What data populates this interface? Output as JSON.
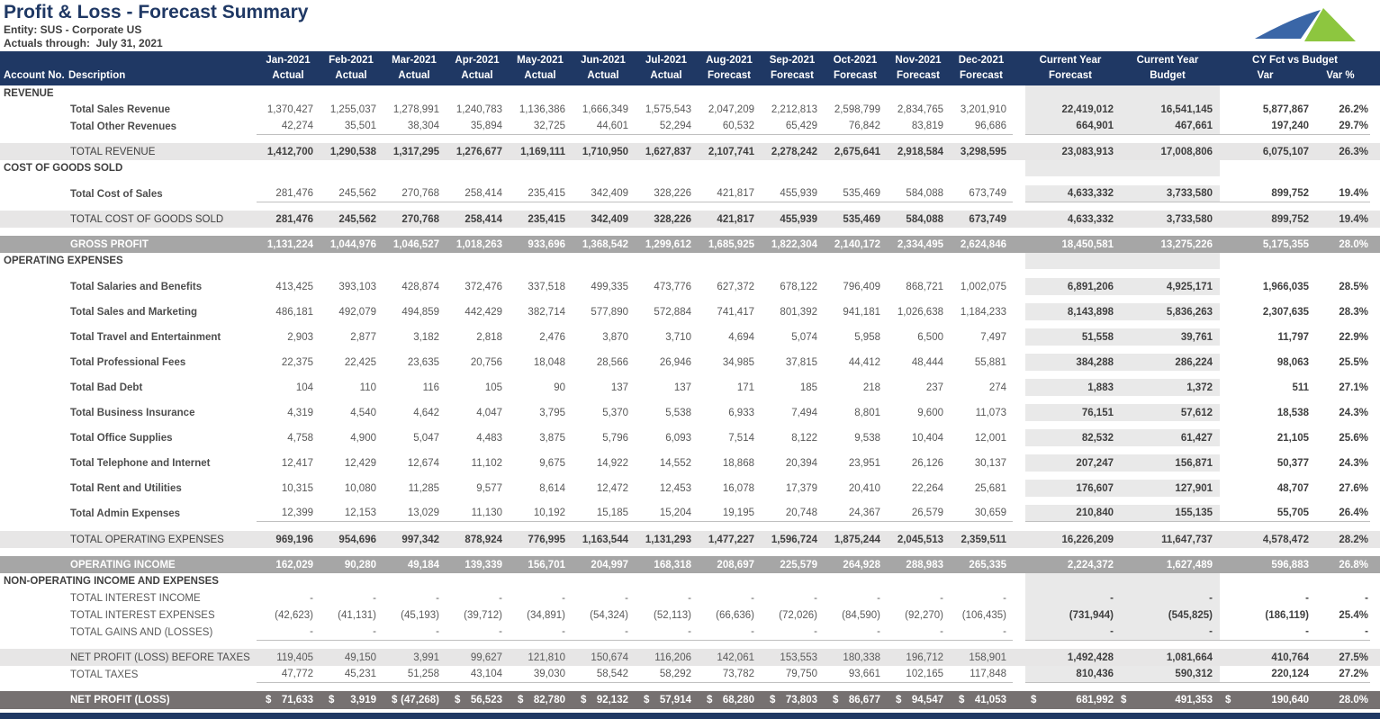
{
  "header": {
    "title": "Profit & Loss - Forecast Summary",
    "entity_label": "Entity: SUS - Corporate US",
    "actuals_label": "Actuals through:  July 31, 2021"
  },
  "colors": {
    "header_navy": "#1F3864",
    "band_gray": "#A6A6A6",
    "band_dark_gray": "#767171",
    "total_row_bg": "#E7E6E6",
    "cy_column_shade": "#E9E9E9",
    "logo_blue": "#3A66A7",
    "logo_green": "#8DC63F"
  },
  "table": {
    "currency_symbol": "$",
    "columns": {
      "account": "Account No.",
      "description": "Description",
      "months": [
        {
          "label": "Jan-2021",
          "sub": "Actual"
        },
        {
          "label": "Feb-2021",
          "sub": "Actual"
        },
        {
          "label": "Mar-2021",
          "sub": "Actual"
        },
        {
          "label": "Apr-2021",
          "sub": "Actual"
        },
        {
          "label": "May-2021",
          "sub": "Actual"
        },
        {
          "label": "Jun-2021",
          "sub": "Actual"
        },
        {
          "label": "Jul-2021",
          "sub": "Actual"
        },
        {
          "label": "Aug-2021",
          "sub": "Forecast"
        },
        {
          "label": "Sep-2021",
          "sub": "Forecast"
        },
        {
          "label": "Oct-2021",
          "sub": "Forecast"
        },
        {
          "label": "Nov-2021",
          "sub": "Forecast"
        },
        {
          "label": "Dec-2021",
          "sub": "Forecast"
        }
      ],
      "cy_forecast": {
        "label": "Current Year",
        "sub": "Forecast"
      },
      "cy_budget": {
        "label": "Current Year",
        "sub": "Budget"
      },
      "variance": {
        "group": "CY Fct vs Budget",
        "var": "Var",
        "var_pct": "Var %"
      }
    },
    "rows": [
      {
        "type": "section",
        "label": "REVENUE",
        "h": 17
      },
      {
        "type": "detail",
        "label": "Total Sales Revenue",
        "h": 19,
        "values": [
          "1,370,427",
          "1,255,037",
          "1,278,991",
          "1,240,783",
          "1,136,386",
          "1,666,349",
          "1,575,543",
          "2,047,209",
          "2,212,813",
          "2,598,799",
          "2,834,765",
          "3,201,910"
        ],
        "cy_fct": "22,419,012",
        "cy_bud": "16,541,145",
        "var": "5,877,867",
        "var_pct": "26.2%"
      },
      {
        "type": "detail",
        "label": "Total Other Revenues",
        "h": 19,
        "underline": true,
        "values": [
          "42,274",
          "35,501",
          "38,304",
          "35,894",
          "32,725",
          "44,601",
          "52,294",
          "60,532",
          "65,429",
          "76,842",
          "83,819",
          "96,686"
        ],
        "cy_fct": "664,901",
        "cy_bud": "467,661",
        "var": "197,240",
        "var_pct": "29.7%"
      },
      {
        "type": "total",
        "label": "TOTAL REVENUE",
        "h": 19,
        "gap": 9,
        "values": [
          "1,412,700",
          "1,290,538",
          "1,317,295",
          "1,276,677",
          "1,169,111",
          "1,710,950",
          "1,627,837",
          "2,107,741",
          "2,278,242",
          "2,675,641",
          "2,918,584",
          "3,298,595"
        ],
        "cy_fct": "23,083,913",
        "cy_bud": "17,008,806",
        "var": "6,075,107",
        "var_pct": "26.3%"
      },
      {
        "type": "section",
        "label": "COST OF GOODS SOLD",
        "h": 18
      },
      {
        "type": "detail",
        "label": "Total Cost of Sales",
        "h": 19,
        "gap": 10,
        "underline": true,
        "values": [
          "281,476",
          "245,562",
          "270,768",
          "258,414",
          "235,415",
          "342,409",
          "328,226",
          "421,817",
          "455,939",
          "535,469",
          "584,088",
          "673,749"
        ],
        "cy_fct": "4,633,332",
        "cy_bud": "3,733,580",
        "var": "899,752",
        "var_pct": "19.4%"
      },
      {
        "type": "total",
        "label": "TOTAL COST OF GOODS SOLD",
        "h": 19,
        "gap": 9,
        "values": [
          "281,476",
          "245,562",
          "270,768",
          "258,414",
          "235,415",
          "342,409",
          "328,226",
          "421,817",
          "455,939",
          "535,469",
          "584,088",
          "673,749"
        ],
        "cy_fct": "4,633,332",
        "cy_bud": "3,733,580",
        "var": "899,752",
        "var_pct": "19.4%"
      },
      {
        "type": "band",
        "label": "GROSS PROFIT",
        "h": 19,
        "gap": 9,
        "values": [
          "1,131,224",
          "1,044,976",
          "1,046,527",
          "1,018,263",
          "933,696",
          "1,368,542",
          "1,299,612",
          "1,685,925",
          "1,822,304",
          "2,140,172",
          "2,334,495",
          "2,624,846"
        ],
        "cy_fct": "18,450,581",
        "cy_bud": "13,275,226",
        "var": "5,175,355",
        "var_pct": "28.0%"
      },
      {
        "type": "section",
        "label": "OPERATING EXPENSES",
        "h": 18
      },
      {
        "type": "detail",
        "label": "Total Salaries and Benefits",
        "h": 19,
        "gap": 10,
        "values": [
          "413,425",
          "393,103",
          "428,874",
          "372,476",
          "337,518",
          "499,335",
          "473,776",
          "627,372",
          "678,122",
          "796,409",
          "868,721",
          "1,002,075"
        ],
        "cy_fct": "6,891,206",
        "cy_bud": "4,925,171",
        "var": "1,966,035",
        "var_pct": "28.5%"
      },
      {
        "type": "detail",
        "label": "Total Sales and Marketing",
        "h": 19,
        "gap": 9,
        "values": [
          "486,181",
          "492,079",
          "494,859",
          "442,429",
          "382,714",
          "577,890",
          "572,884",
          "741,417",
          "801,392",
          "941,181",
          "1,026,638",
          "1,184,233"
        ],
        "cy_fct": "8,143,898",
        "cy_bud": "5,836,263",
        "var": "2,307,635",
        "var_pct": "28.3%"
      },
      {
        "type": "detail",
        "label": "Total Travel and Entertainment",
        "h": 19,
        "gap": 9,
        "values": [
          "2,903",
          "2,877",
          "3,182",
          "2,818",
          "2,476",
          "3,870",
          "3,710",
          "4,694",
          "5,074",
          "5,958",
          "6,500",
          "7,497"
        ],
        "cy_fct": "51,558",
        "cy_bud": "39,761",
        "var": "11,797",
        "var_pct": "22.9%"
      },
      {
        "type": "detail",
        "label": "Total Professional Fees",
        "h": 19,
        "gap": 9,
        "values": [
          "22,375",
          "22,425",
          "23,635",
          "20,756",
          "18,048",
          "28,566",
          "26,946",
          "34,985",
          "37,815",
          "44,412",
          "48,444",
          "55,881"
        ],
        "cy_fct": "384,288",
        "cy_bud": "286,224",
        "var": "98,063",
        "var_pct": "25.5%"
      },
      {
        "type": "detail",
        "label": "Total Bad Debt",
        "h": 19,
        "gap": 9,
        "values": [
          "104",
          "110",
          "116",
          "105",
          "90",
          "137",
          "137",
          "171",
          "185",
          "218",
          "237",
          "274"
        ],
        "cy_fct": "1,883",
        "cy_bud": "1,372",
        "var": "511",
        "var_pct": "27.1%"
      },
      {
        "type": "detail",
        "label": "Total Business Insurance",
        "h": 19,
        "gap": 9,
        "values": [
          "4,319",
          "4,540",
          "4,642",
          "4,047",
          "3,795",
          "5,370",
          "5,538",
          "6,933",
          "7,494",
          "8,801",
          "9,600",
          "11,073"
        ],
        "cy_fct": "76,151",
        "cy_bud": "57,612",
        "var": "18,538",
        "var_pct": "24.3%"
      },
      {
        "type": "detail",
        "label": "Total Office Supplies",
        "h": 19,
        "gap": 9,
        "values": [
          "4,758",
          "4,900",
          "5,047",
          "4,483",
          "3,875",
          "5,796",
          "6,093",
          "7,514",
          "8,122",
          "9,538",
          "10,404",
          "12,001"
        ],
        "cy_fct": "82,532",
        "cy_bud": "61,427",
        "var": "21,105",
        "var_pct": "25.6%"
      },
      {
        "type": "detail",
        "label": "Total Telephone and Internet",
        "h": 19,
        "gap": 9,
        "values": [
          "12,417",
          "12,429",
          "12,674",
          "11,102",
          "9,675",
          "14,922",
          "14,552",
          "18,868",
          "20,394",
          "23,951",
          "26,126",
          "30,137"
        ],
        "cy_fct": "207,247",
        "cy_bud": "156,871",
        "var": "50,377",
        "var_pct": "24.3%"
      },
      {
        "type": "detail",
        "label": "Total Rent and Utilities",
        "h": 19,
        "gap": 9,
        "values": [
          "10,315",
          "10,080",
          "11,285",
          "9,577",
          "8,614",
          "12,472",
          "12,453",
          "16,078",
          "17,379",
          "20,410",
          "22,264",
          "25,681"
        ],
        "cy_fct": "176,607",
        "cy_bud": "127,901",
        "var": "48,707",
        "var_pct": "27.6%"
      },
      {
        "type": "detail",
        "label": "Total Admin Expenses",
        "h": 19,
        "gap": 9,
        "underline": true,
        "values": [
          "12,399",
          "12,153",
          "13,029",
          "11,130",
          "10,192",
          "15,185",
          "15,204",
          "19,195",
          "20,748",
          "24,367",
          "26,579",
          "30,659"
        ],
        "cy_fct": "210,840",
        "cy_bud": "155,135",
        "var": "55,705",
        "var_pct": "26.4%"
      },
      {
        "type": "total",
        "label": "TOTAL OPERATING EXPENSES",
        "h": 19,
        "gap": 10,
        "values": [
          "969,196",
          "954,696",
          "997,342",
          "878,924",
          "776,995",
          "1,163,544",
          "1,131,293",
          "1,477,227",
          "1,596,724",
          "1,875,244",
          "2,045,513",
          "2,359,511"
        ],
        "cy_fct": "16,226,209",
        "cy_bud": "11,647,737",
        "var": "4,578,472",
        "var_pct": "28.2%"
      },
      {
        "type": "band",
        "label": "OPERATING INCOME",
        "h": 19,
        "gap": 9,
        "values": [
          "162,029",
          "90,280",
          "49,184",
          "139,339",
          "156,701",
          "204,997",
          "168,318",
          "208,697",
          "225,579",
          "264,928",
          "288,983",
          "265,335"
        ],
        "cy_fct": "2,224,372",
        "cy_bud": "1,627,489",
        "var": "596,883",
        "var_pct": "26.8%"
      },
      {
        "type": "section",
        "label": "NON-OPERATING INCOME AND EXPENSES",
        "h": 18
      },
      {
        "type": "plain",
        "label": "TOTAL INTEREST INCOME",
        "h": 19,
        "values": [
          "-",
          "-",
          "-",
          "-",
          "-",
          "-",
          "-",
          "-",
          "-",
          "-",
          "-",
          "-"
        ],
        "cy_fct": "-",
        "cy_bud": "-",
        "var": "-",
        "var_pct": "-"
      },
      {
        "type": "plain",
        "label": "TOTAL INTEREST EXPENSES",
        "h": 19,
        "values": [
          "(42,623)",
          "(41,131)",
          "(45,193)",
          "(39,712)",
          "(34,891)",
          "(54,324)",
          "(52,113)",
          "(66,636)",
          "(72,026)",
          "(84,590)",
          "(92,270)",
          "(106,435)"
        ],
        "cy_fct": "(731,944)",
        "cy_bud": "(545,825)",
        "var": "(186,119)",
        "var_pct": "25.4%"
      },
      {
        "type": "plain",
        "label": "TOTAL GAINS AND (LOSSES)",
        "h": 19,
        "underline": true,
        "values": [
          "-",
          "-",
          "-",
          "-",
          "-",
          "-",
          "-",
          "-",
          "-",
          "-",
          "-",
          "-"
        ],
        "cy_fct": "-",
        "cy_bud": "-",
        "var": "-",
        "var_pct": "-"
      },
      {
        "type": "subtotal",
        "label": "NET PROFIT (LOSS) BEFORE TAXES",
        "h": 19,
        "gap": 9,
        "values": [
          "119,405",
          "49,150",
          "3,991",
          "99,627",
          "121,810",
          "150,674",
          "116,206",
          "142,061",
          "153,553",
          "180,338",
          "196,712",
          "158,901"
        ],
        "cy_fct": "1,492,428",
        "cy_bud": "1,081,664",
        "var": "410,764",
        "var_pct": "27.5%"
      },
      {
        "type": "plain",
        "label": "TOTAL TAXES",
        "h": 19,
        "underline": true,
        "values": [
          "47,772",
          "45,231",
          "51,258",
          "43,104",
          "39,030",
          "58,542",
          "58,292",
          "73,782",
          "79,750",
          "93,661",
          "102,165",
          "117,848"
        ],
        "cy_fct": "810,436",
        "cy_bud": "590,312",
        "var": "220,124",
        "var_pct": "27.2%"
      },
      {
        "type": "banddark",
        "label": "NET PROFIT (LOSS)",
        "h": 20,
        "gap": 9,
        "dollar": true,
        "values": [
          "71,633",
          "3,919",
          "(47,268)",
          "56,523",
          "82,780",
          "92,132",
          "57,914",
          "68,280",
          "73,803",
          "86,677",
          "94,547",
          "41,053"
        ],
        "cy_fct": "681,992",
        "cy_bud": "491,353",
        "var": "190,640",
        "var_pct": "28.0%"
      }
    ]
  }
}
